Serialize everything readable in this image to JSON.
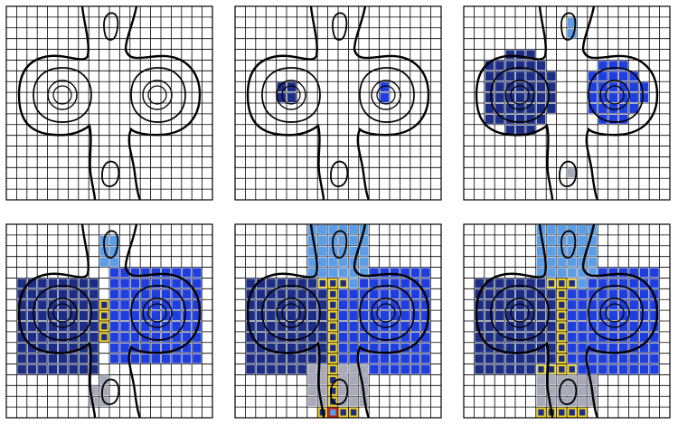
{
  "figure": {
    "colors": {
      "background": "#ffffff",
      "grid_line": "#000000",
      "contour": "#000000",
      "basin_dark_blue": "#1c2d86",
      "basin_blue": "#1f3ee0",
      "basin_light_blue": "#5b9ee8",
      "basin_gray": "#a9a9b8",
      "watershed_yellow": "#f2d21c",
      "conflict_red": "#cc1b1b"
    },
    "grid": {
      "columns": 20,
      "rows": 18
    },
    "panels": [
      {
        "id": "p1",
        "stage": 1
      },
      {
        "id": "p2",
        "stage": 2
      },
      {
        "id": "p3",
        "stage": 3
      },
      {
        "id": "p4",
        "stage": 4
      },
      {
        "id": "p5",
        "stage": 5
      },
      {
        "id": "p6",
        "stage": 6
      }
    ]
  }
}
